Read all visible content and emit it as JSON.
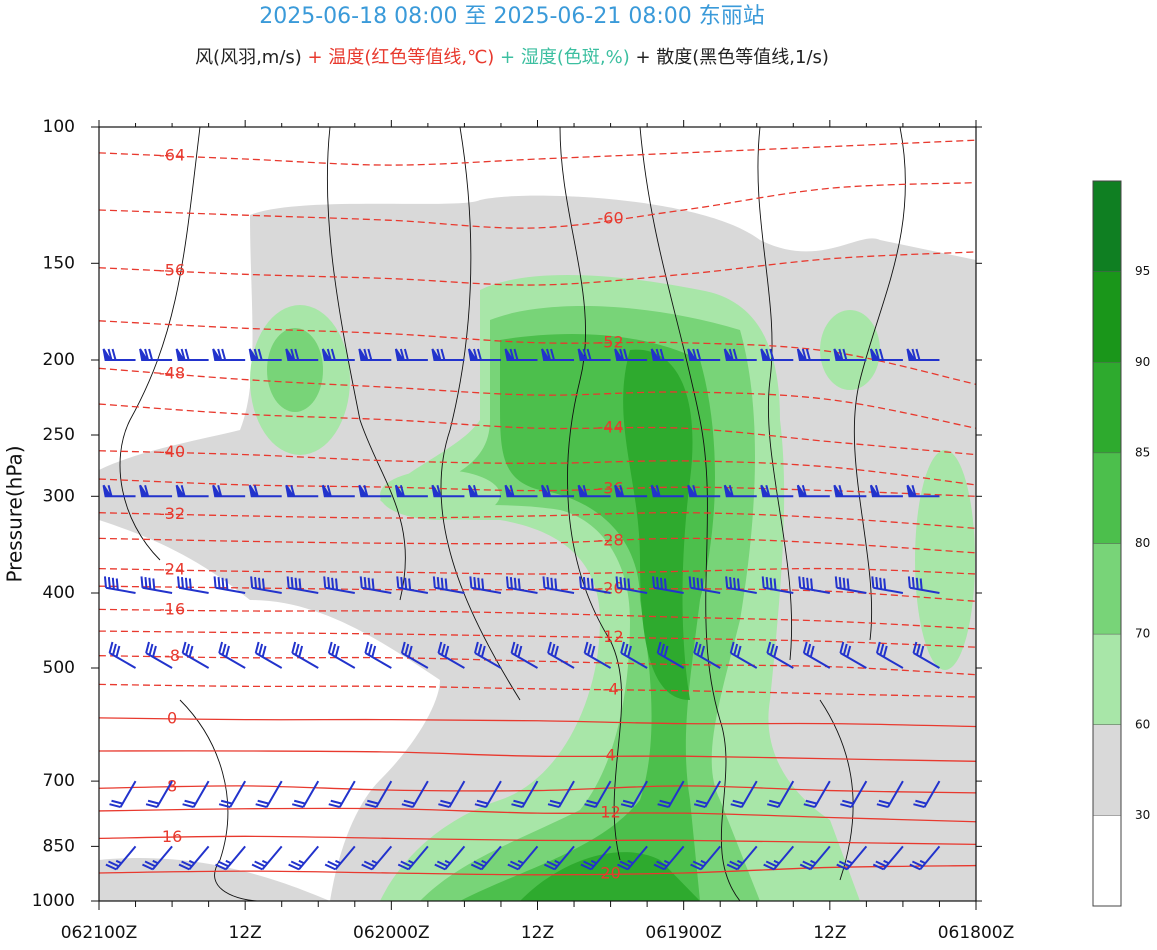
{
  "chart_data": {
    "type": "cross-section",
    "title": "2025-06-18 08:00 至 2025-06-21 08:00 东丽站",
    "title_color": "#3a9ad9",
    "subtitle": [
      {
        "text": "风(风羽,m/s)",
        "color": "#222222"
      },
      {
        "text": " + 温度(红色等值线,℃)",
        "color": "#e8392e"
      },
      {
        "text": " + 湿度(色斑,%)",
        "color": "#3cbfa0"
      },
      {
        "text": " + 散度(黑色等值线,1/s)",
        "color": "#222222"
      }
    ],
    "y_label": "Pressure(hPa)",
    "y_log": true,
    "ylim": [
      100,
      1000
    ],
    "yticks": [
      100,
      150,
      200,
      250,
      300,
      400,
      500,
      700,
      850,
      1000
    ],
    "categories": [
      "062100Z",
      "12Z",
      "062000Z",
      "12Z",
      "061900Z",
      "12Z",
      "061800Z"
    ],
    "isotherm_color": "#e8392e",
    "isotherms": [
      {
        "level": -64,
        "pressure": [
          108,
          110,
          112,
          110,
          108,
          106,
          104
        ]
      },
      {
        "level": -60,
        "pressure": [
          128,
          130,
          132,
          135,
          128,
          120,
          118
        ]
      },
      {
        "level": -56,
        "pressure": [
          152,
          155,
          157,
          160,
          155,
          148,
          145
        ]
      },
      {
        "level": -52,
        "pressure": [
          178,
          182,
          185,
          190,
          190,
          195,
          215
        ]
      },
      {
        "level": -48,
        "pressure": [
          205,
          212,
          217,
          222,
          220,
          225,
          245
        ]
      },
      {
        "level": -44,
        "pressure": [
          228,
          235,
          239,
          245,
          245,
          255,
          265
        ]
      },
      {
        "level": -40,
        "pressure": [
          262,
          265,
          270,
          272,
          270,
          275,
          290
        ]
      },
      {
        "level": -36,
        "pressure": [
          285,
          290,
          292,
          295,
          292,
          295,
          300
        ]
      },
      {
        "level": -32,
        "pressure": [
          315,
          318,
          320,
          318,
          315,
          320,
          330
        ]
      },
      {
        "level": -28,
        "pressure": [
          340,
          343,
          345,
          345,
          340,
          345,
          355
        ]
      },
      {
        "level": -24,
        "pressure": [
          372,
          375,
          376,
          378,
          375,
          372,
          378
        ]
      },
      {
        "level": -20,
        "pressure": [
          392,
          394,
          396,
          396,
          395,
          398,
          410
        ]
      },
      {
        "level": -16,
        "pressure": [
          420,
          422,
          422,
          425,
          430,
          435,
          445
        ]
      },
      {
        "level": -12,
        "pressure": [
          448,
          450,
          452,
          455,
          458,
          462,
          470
        ]
      },
      {
        "level": -8,
        "pressure": [
          482,
          485,
          485,
          490,
          495,
          498,
          510
        ]
      },
      {
        "level": -4,
        "pressure": [
          525,
          528,
          528,
          532,
          535,
          540,
          545
        ]
      },
      {
        "level": 0,
        "pressure": [
          580,
          583,
          583,
          585,
          590,
          590,
          595
        ]
      },
      {
        "level": 4,
        "pressure": [
          640,
          640,
          642,
          650,
          650,
          655,
          660
        ]
      },
      {
        "level": 8,
        "pressure": [
          715,
          710,
          719,
          720,
          710,
          720,
          725
        ]
      },
      {
        "level": 12,
        "pressure": [
          765,
          760,
          760,
          770,
          770,
          780,
          790
        ]
      },
      {
        "level": 16,
        "pressure": [
          830,
          825,
          830,
          835,
          835,
          840,
          845
        ]
      },
      {
        "level": 20,
        "pressure": [
          920,
          915,
          920,
          925,
          920,
          905,
          900
        ]
      }
    ],
    "wind_color": "#2233cc",
    "wind": {
      "pressure": [
        200,
        300,
        400,
        500,
        700,
        850
      ],
      "speed": [
        28,
        24,
        16,
        12,
        8,
        10
      ],
      "direction": [
        270,
        270,
        280,
        300,
        210,
        220
      ]
    },
    "colorbar": {
      "levels": [
        30,
        60,
        70,
        80,
        85,
        90,
        95
      ],
      "colors": [
        "#ffffff",
        "#d9d9d9",
        "#a8e6a8",
        "#78d478",
        "#4cbf4c",
        "#2eaa2e",
        "#1a961a",
        "#0f7f22"
      ]
    }
  }
}
